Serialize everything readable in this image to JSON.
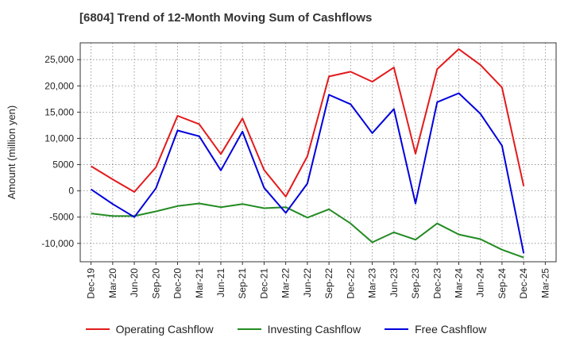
{
  "title": "[6804]  Trend of 12-Month Moving Sum of Cashflows",
  "chart_data": {
    "type": "line",
    "title": "[6804]  Trend of 12-Month Moving Sum of Cashflows",
    "xlabel": "",
    "ylabel": "Amount (million yen)",
    "ylim": [
      -13500,
      28200
    ],
    "yticks": [
      -10000,
      -5000,
      0,
      5000,
      10000,
      15000,
      20000,
      25000
    ],
    "ytick_labels": [
      "-10,000",
      "-5000",
      "0",
      "5000",
      "10,000",
      "15,000",
      "20,000",
      "25,000"
    ],
    "x": [
      "Dec-19",
      "Mar-20",
      "Jun-20",
      "Sep-20",
      "Dec-20",
      "Mar-21",
      "Jun-21",
      "Sep-21",
      "Dec-21",
      "Mar-22",
      "Jun-22",
      "Sep-22",
      "Dec-22",
      "Mar-23",
      "Jun-23",
      "Sep-23",
      "Dec-23",
      "Mar-24",
      "Jun-24",
      "Sep-24",
      "Dec-24",
      "Mar-25"
    ],
    "grid": true,
    "legend_position": "bottom",
    "series": [
      {
        "name": "Operating Cashflow",
        "color": "#e31a1c",
        "values": [
          4700,
          2200,
          -200,
          4500,
          14300,
          12700,
          7000,
          13800,
          4000,
          -1100,
          6600,
          21800,
          22700,
          20800,
          23500,
          7100,
          23200,
          27000,
          24000,
          19700,
          900,
          null
        ]
      },
      {
        "name": "Investing Cashflow",
        "color": "#228b22",
        "values": [
          -4300,
          -4800,
          -4800,
          -3900,
          -2900,
          -2400,
          -3100,
          -2500,
          -3300,
          -3100,
          -5100,
          -3500,
          -6200,
          -9800,
          -7900,
          -9300,
          -6200,
          -8300,
          -9200,
          -11200,
          -12700,
          null
        ]
      },
      {
        "name": "Free Cashflow",
        "color": "#0000dd",
        "values": [
          300,
          -2500,
          -5000,
          500,
          11500,
          10400,
          3900,
          11300,
          600,
          -4200,
          1400,
          18300,
          16500,
          11000,
          15600,
          -2400,
          16900,
          18600,
          14700,
          8600,
          -11900,
          null
        ]
      }
    ]
  }
}
